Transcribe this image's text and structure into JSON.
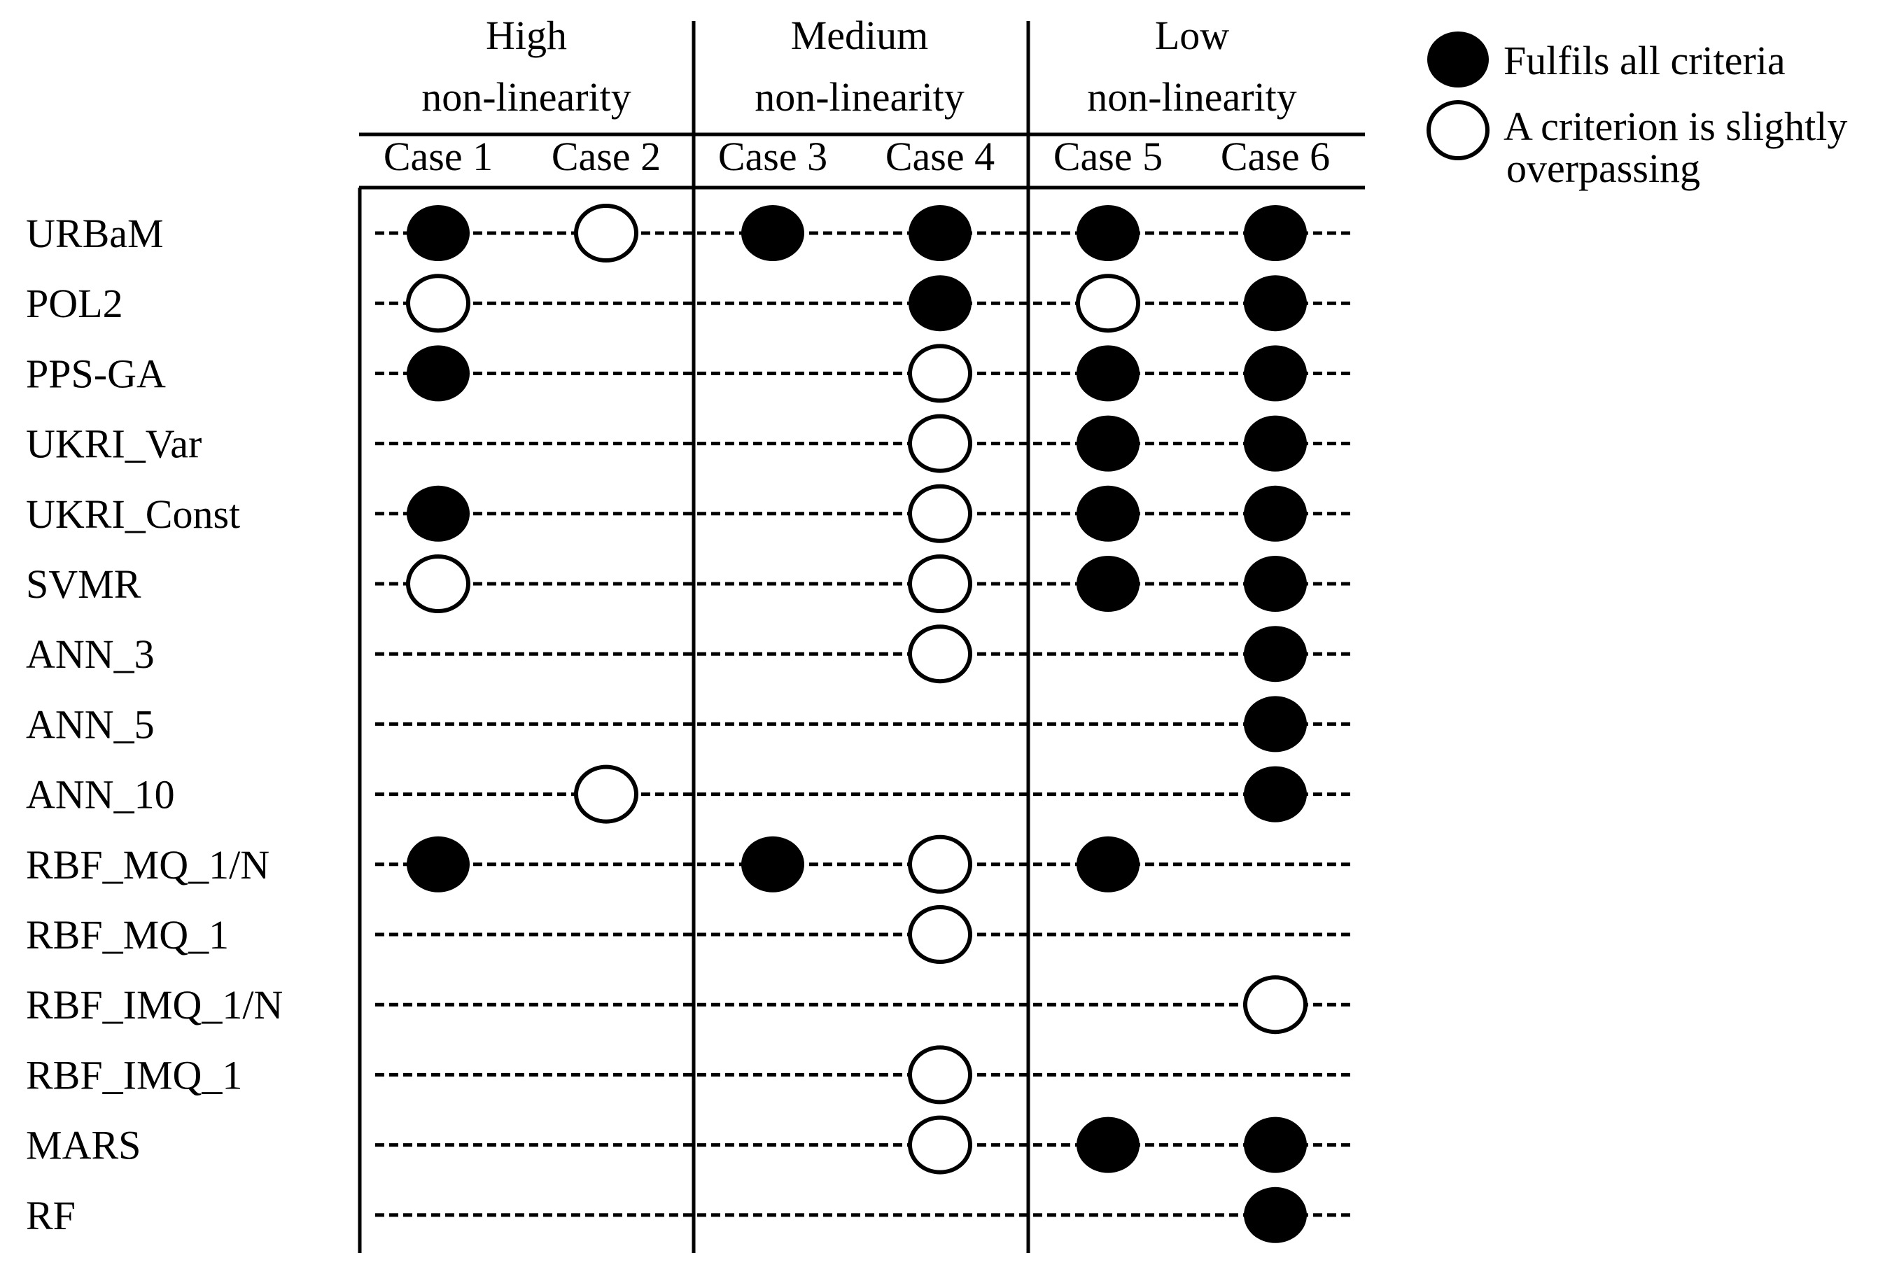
{
  "groups": [
    {
      "line1": "High",
      "line2": "non-linearity"
    },
    {
      "line1": "Medium",
      "line2": "non-linearity"
    },
    {
      "line1": "Low",
      "line2": "non-linearity"
    }
  ],
  "cases": [
    "Case 1",
    "Case 2",
    "Case 3",
    "Case 4",
    "Case 5",
    "Case 6"
  ],
  "legend": {
    "filled_label": "Fulfils all criteria",
    "open_label_line1": "A criterion is slightly",
    "open_label_line2": "overpassing"
  },
  "rows": [
    {
      "label": "URBaM",
      "marks": [
        "F",
        "O",
        "F",
        "F",
        "F",
        "F"
      ]
    },
    {
      "label": "POL2",
      "marks": [
        "O",
        "",
        "",
        "F",
        "O",
        "F"
      ]
    },
    {
      "label": "PPS-GA",
      "marks": [
        "F",
        "",
        "",
        "O",
        "F",
        "F"
      ]
    },
    {
      "label": "UKRI_Var",
      "marks": [
        "",
        "",
        "",
        "O",
        "F",
        "F"
      ]
    },
    {
      "label": "UKRI_Const",
      "marks": [
        "F",
        "",
        "",
        "O",
        "F",
        "F"
      ]
    },
    {
      "label": "SVMR",
      "marks": [
        "O",
        "",
        "",
        "O",
        "F",
        "F"
      ]
    },
    {
      "label": "ANN_3",
      "marks": [
        "",
        "",
        "",
        "O",
        "",
        "F"
      ]
    },
    {
      "label": "ANN_5",
      "marks": [
        "",
        "",
        "",
        "",
        "",
        "F"
      ]
    },
    {
      "label": "ANN_10",
      "marks": [
        "",
        "O",
        "",
        "",
        "",
        "F"
      ]
    },
    {
      "label": "RBF_MQ_1/N",
      "marks": [
        "F",
        "",
        "F",
        "O",
        "F",
        ""
      ]
    },
    {
      "label": "RBF_MQ_1",
      "marks": [
        "",
        "",
        "",
        "O",
        "",
        ""
      ]
    },
    {
      "label": "RBF_IMQ_1/N",
      "marks": [
        "",
        "",
        "",
        "",
        "",
        "O"
      ]
    },
    {
      "label": "RBF_IMQ_1",
      "marks": [
        "",
        "",
        "",
        "O",
        "",
        ""
      ]
    },
    {
      "label": "MARS",
      "marks": [
        "",
        "",
        "",
        "O",
        "F",
        "F"
      ]
    },
    {
      "label": "RF",
      "marks": [
        "",
        "",
        "",
        "",
        "",
        "F"
      ]
    }
  ]
}
